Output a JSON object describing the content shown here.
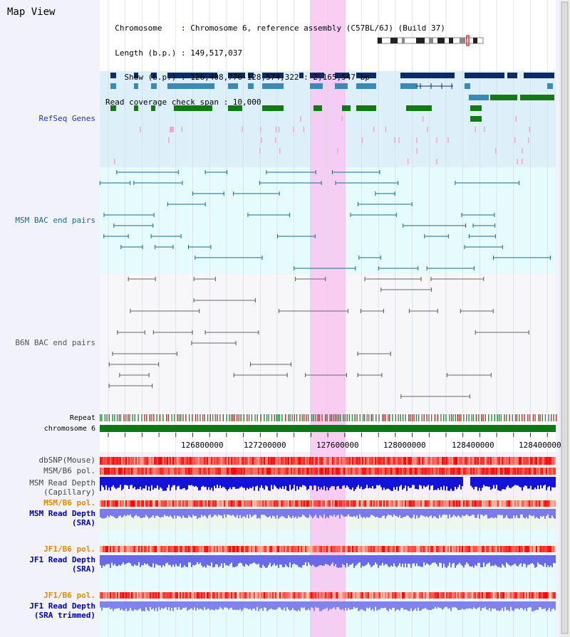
{
  "header": {
    "title": "Map View",
    "info_lines": [
      "  Chromosome    : Chromosome 6, reference assembly (C57BL/6J) (Build 37)",
      "  Length (b.p.) : 149,517,037",
      "    Show (b.p.) : 126,408,776-128,574,322 : 2,165,547 bp",
      "Read coverage check span : 10,000"
    ]
  },
  "tracks": {
    "refseq": "RefSeq Genes",
    "msm_bac": "MSM BAC end pairs",
    "b6n_bac": "B6N BAC end pairs",
    "repeat": "Repeat",
    "chromosome": "chromosome 6",
    "dbsnp": "dbSNP(Mouse)",
    "msm_b6_pol": "MSM/B6 pol.",
    "msm_depth_cap": "MSM Read Depth\n(Capillary)",
    "msm_b6_pol_2": "MSM/B6 pol.",
    "msm_depth_sra": "MSM Read Depth\n(SRA)",
    "jf1_b6_pol": "JF1/B6 pol.",
    "jf1_depth_sra": "JF1 Read Depth\n(SRA)",
    "jf1_b6_pol_2": "JF1/B6 pol.",
    "jf1_depth_trim": "JF1 Read Depth\n(SRA trimmed)"
  },
  "axis_ticks": [
    "126800000",
    "127200000",
    "127600000",
    "128000000",
    "128400000"
  ],
  "colors": {
    "refseq_label": "#1a3aa6",
    "msm_label": "#1a6a8a",
    "b6n_label": "#555555",
    "pol_msm": "#e08a00",
    "depth_blue": "#0000cc",
    "highlight": "#f8c8f0"
  }
}
